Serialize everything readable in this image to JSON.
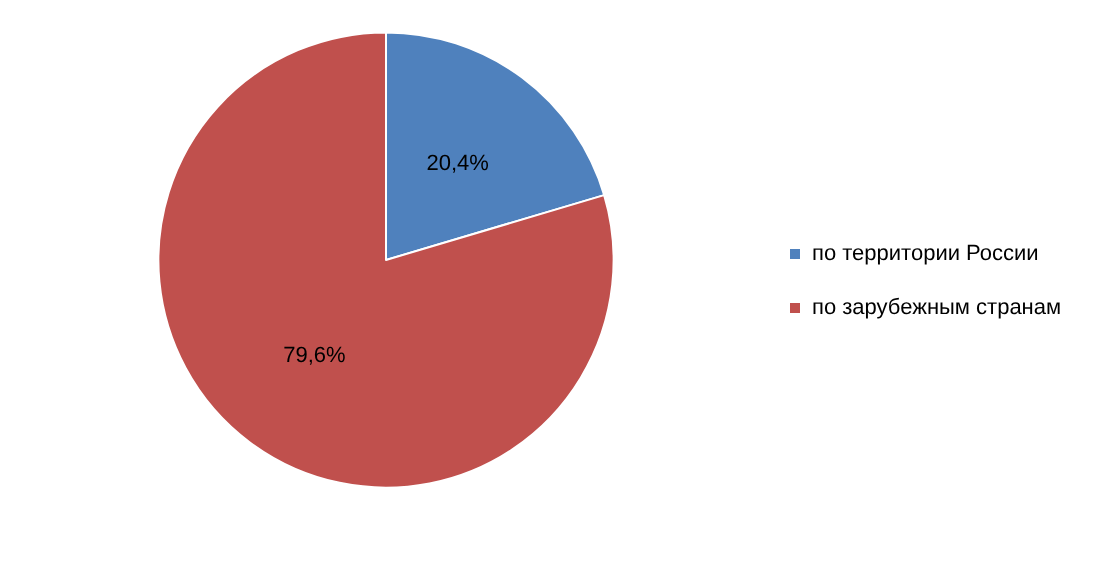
{
  "chart_data": {
    "type": "pie",
    "categories": [
      "по территории России",
      "по зарубежным странам"
    ],
    "values": [
      20.4,
      79.6
    ],
    "colors": [
      "#4f81bd",
      "#c0504d"
    ],
    "value_labels": [
      "20,4%",
      "79,6%"
    ],
    "legend": "right"
  }
}
